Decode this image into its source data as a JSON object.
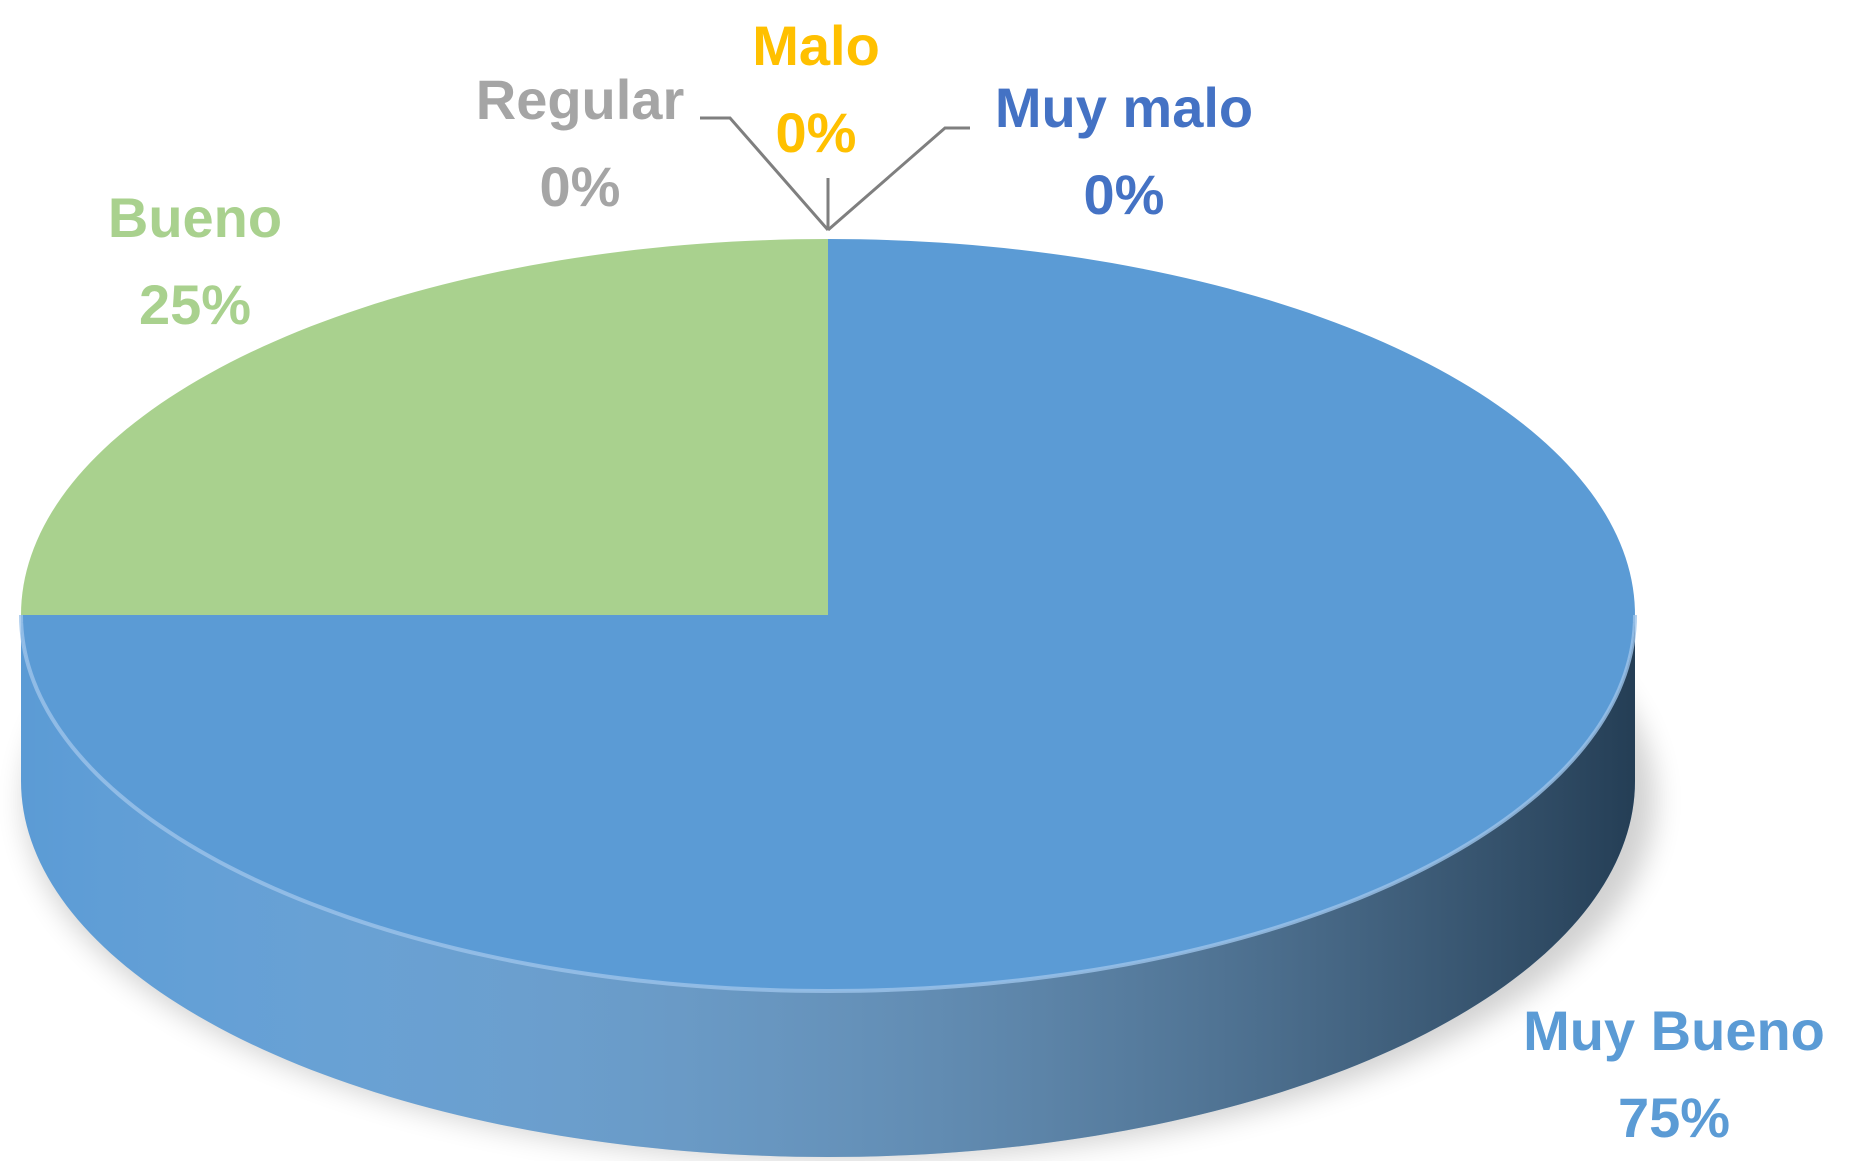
{
  "chart_data": {
    "type": "pie",
    "categories": [
      "Muy Bueno",
      "Bueno",
      "Regular",
      "Malo",
      "Muy malo"
    ],
    "values": [
      75,
      25,
      0,
      0,
      0
    ],
    "value_labels": [
      "75%",
      "25%",
      "0%",
      "0%",
      "0%"
    ],
    "colors": [
      "#5b9bd5",
      "#a9d18e",
      "#a5a5a5",
      "#ffc000",
      "#4472c4"
    ]
  }
}
